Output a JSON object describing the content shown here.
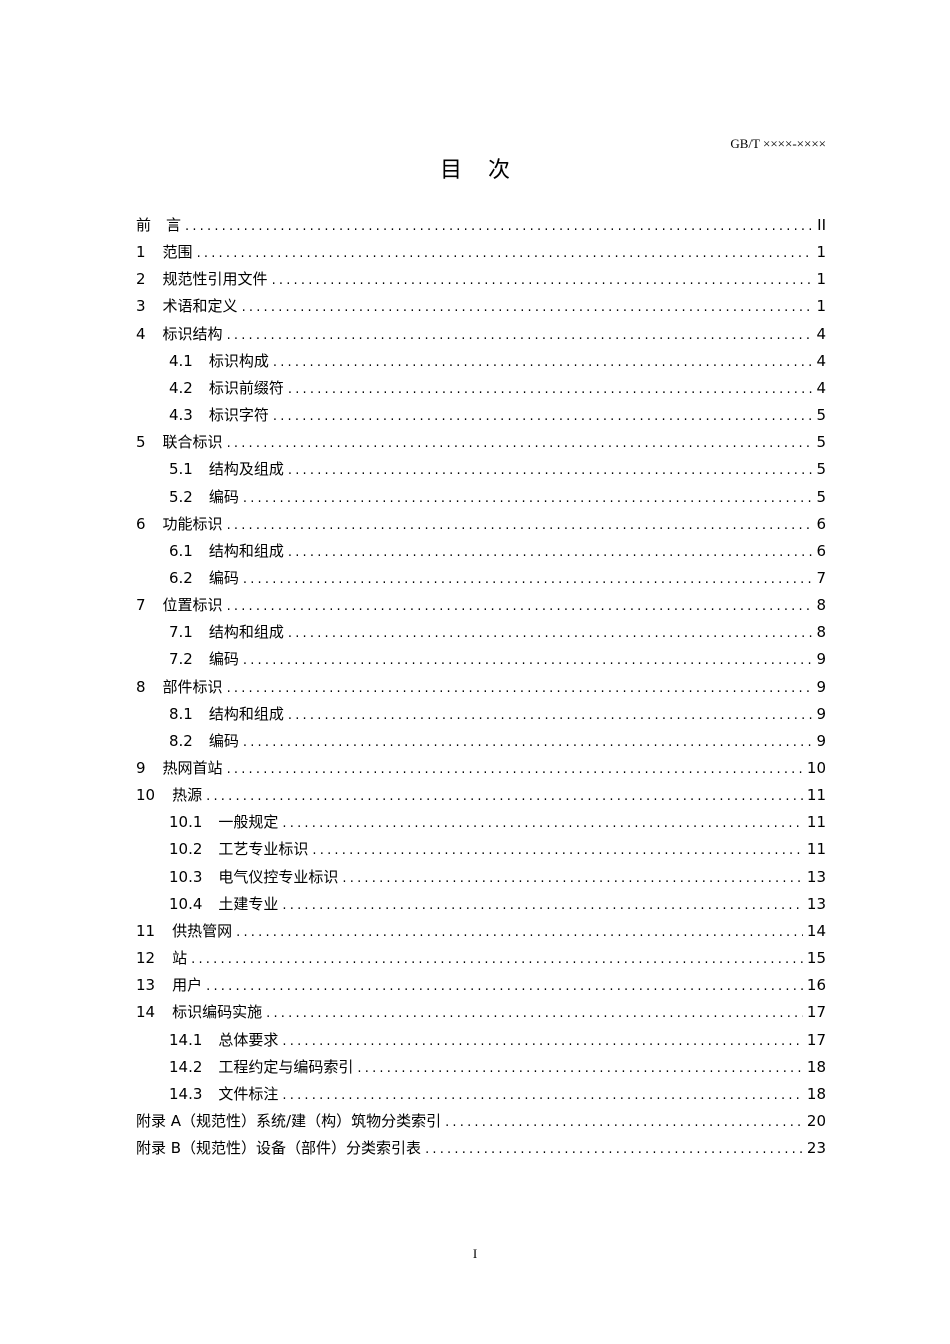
{
  "header": {
    "standard_number": "GB/T ××××-××××"
  },
  "title": "目次",
  "toc": [
    {
      "num": "",
      "title": "前　言",
      "page": "II",
      "level": 1
    },
    {
      "num": "1",
      "title": "范围",
      "page": "1",
      "level": 1
    },
    {
      "num": "2",
      "title": "规范性引用文件",
      "page": "1",
      "level": 1
    },
    {
      "num": "3",
      "title": "术语和定义",
      "page": "1",
      "level": 1
    },
    {
      "num": "4",
      "title": "标识结构",
      "page": "4",
      "level": 1
    },
    {
      "num": "4.1",
      "title": "标识构成",
      "page": "4",
      "level": 2
    },
    {
      "num": "4.2",
      "title": "标识前缀符",
      "page": "4",
      "level": 2
    },
    {
      "num": "4.3",
      "title": "标识字符",
      "page": "5",
      "level": 2
    },
    {
      "num": "5",
      "title": "联合标识",
      "page": "5",
      "level": 1
    },
    {
      "num": "5.1",
      "title": "结构及组成",
      "page": "5",
      "level": 2
    },
    {
      "num": "5.2",
      "title": "编码",
      "page": "5",
      "level": 2
    },
    {
      "num": "6",
      "title": "功能标识",
      "page": "6",
      "level": 1
    },
    {
      "num": "6.1",
      "title": "结构和组成",
      "page": "6",
      "level": 2
    },
    {
      "num": "6.2",
      "title": "编码",
      "page": "7",
      "level": 2
    },
    {
      "num": "7",
      "title": "位置标识",
      "page": "8",
      "level": 1
    },
    {
      "num": "7.1",
      "title": "结构和组成",
      "page": "8",
      "level": 2
    },
    {
      "num": "7.2",
      "title": "编码",
      "page": "9",
      "level": 2
    },
    {
      "num": "8",
      "title": "部件标识",
      "page": "9",
      "level": 1
    },
    {
      "num": "8.1",
      "title": "结构和组成",
      "page": "9",
      "level": 2
    },
    {
      "num": "8.2",
      "title": "编码",
      "page": "9",
      "level": 2
    },
    {
      "num": "9",
      "title": "热网首站",
      "page": "10",
      "level": 1
    },
    {
      "num": "10",
      "title": "热源",
      "page": "11",
      "level": 1
    },
    {
      "num": "10.1",
      "title": "一般规定",
      "page": "11",
      "level": 2
    },
    {
      "num": "10.2",
      "title": "工艺专业标识",
      "page": "11",
      "level": 2
    },
    {
      "num": "10.3",
      "title": "电气仪控专业标识",
      "page": "13",
      "level": 2
    },
    {
      "num": "10.4",
      "title": "土建专业",
      "page": "13",
      "level": 2
    },
    {
      "num": "11",
      "title": "供热管网",
      "page": "14",
      "level": 1
    },
    {
      "num": "12",
      "title": "站",
      "page": "15",
      "level": 1
    },
    {
      "num": "13",
      "title": "用户",
      "page": "16",
      "level": 1
    },
    {
      "num": "14",
      "title": "标识编码实施",
      "page": "17",
      "level": 1
    },
    {
      "num": "14.1",
      "title": "总体要求",
      "page": "17",
      "level": 2
    },
    {
      "num": "14.2",
      "title": "工程约定与编码索引",
      "page": "18",
      "level": 2
    },
    {
      "num": "14.3",
      "title": "文件标注",
      "page": "18",
      "level": 2
    },
    {
      "num": "",
      "title": "附录 A（规范性）系统/建（构）筑物分类索引",
      "page": "20",
      "level": 1
    },
    {
      "num": "",
      "title": "附录 B（规范性）设备（部件）分类索引表",
      "page": "23",
      "level": 1
    }
  ],
  "footer": {
    "page_number": "I"
  }
}
